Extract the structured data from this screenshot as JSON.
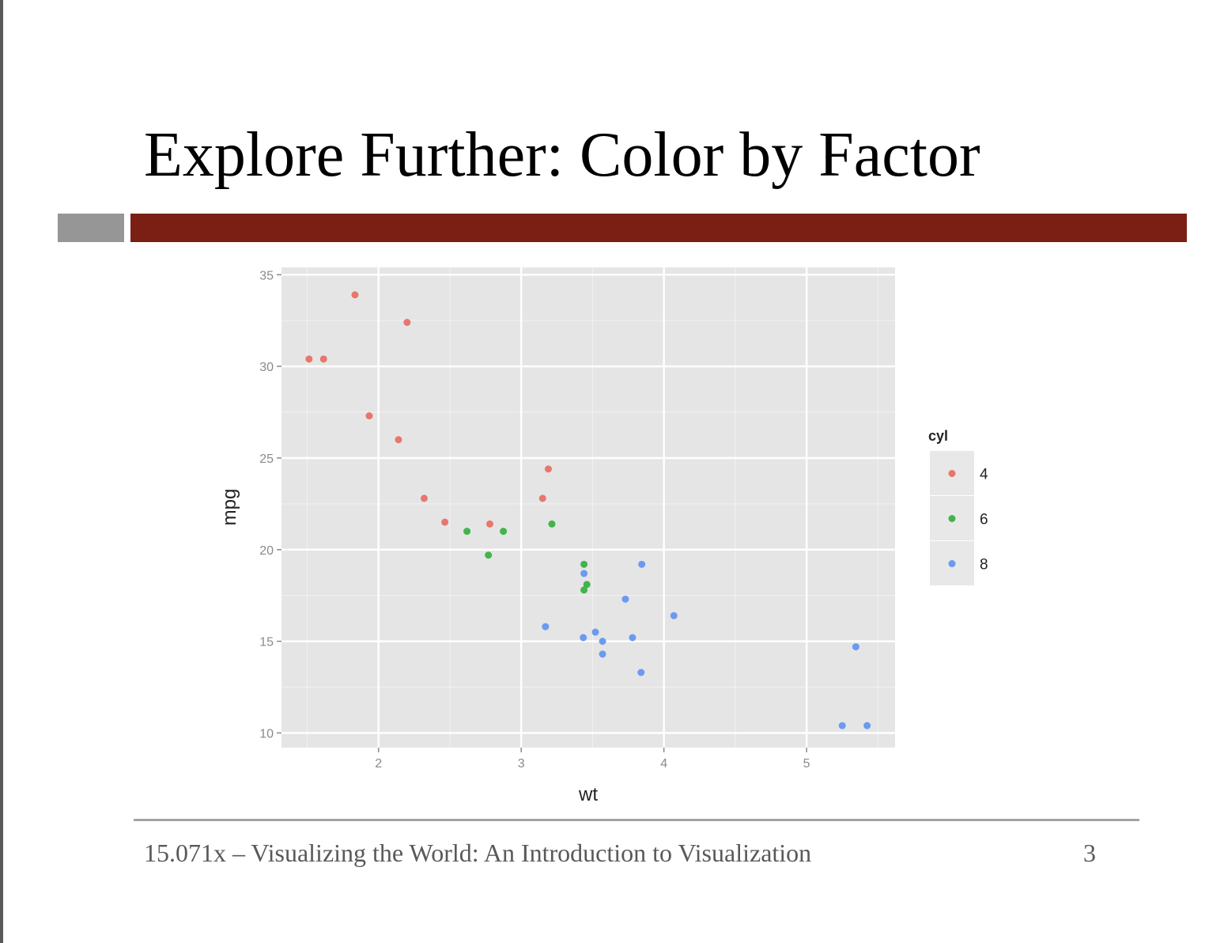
{
  "slide": {
    "title": "Explore Further: Color by Factor",
    "footer": "15.071x – Visualizing the World: An Introduction to Visualization",
    "page_number": "3"
  },
  "colors": {
    "accent_bar": "#7b1f14",
    "side_bar": "#969696",
    "panel_bg": "#e5e5e5",
    "grid": "#ffffff"
  },
  "chart_data": {
    "type": "scatter",
    "title": "",
    "xlabel": "wt",
    "ylabel": "mpg",
    "xlim": [
      1.32,
      5.62
    ],
    "ylim": [
      9.2,
      35.4
    ],
    "x_ticks": [
      2,
      3,
      4,
      5
    ],
    "y_ticks": [
      10,
      15,
      20,
      25,
      30,
      35
    ],
    "grid": true,
    "legend": {
      "title": "cyl",
      "position": "right"
    },
    "series": [
      {
        "name": "4",
        "color": "#e8766d",
        "points": [
          [
            1.513,
            30.4
          ],
          [
            1.615,
            30.4
          ],
          [
            1.835,
            33.9
          ],
          [
            1.935,
            27.3
          ],
          [
            2.14,
            26.0
          ],
          [
            2.2,
            32.4
          ],
          [
            2.32,
            22.8
          ],
          [
            2.465,
            21.5
          ],
          [
            2.78,
            21.4
          ],
          [
            3.15,
            22.8
          ],
          [
            3.19,
            24.4
          ]
        ]
      },
      {
        "name": "6",
        "color": "#41b44b",
        "points": [
          [
            2.62,
            21.0
          ],
          [
            2.77,
            19.7
          ],
          [
            2.875,
            21.0
          ],
          [
            3.215,
            21.4
          ],
          [
            3.44,
            19.2
          ],
          [
            3.44,
            17.8
          ],
          [
            3.46,
            18.1
          ]
        ]
      },
      {
        "name": "8",
        "color": "#6c9af0",
        "points": [
          [
            3.17,
            15.8
          ],
          [
            3.435,
            15.2
          ],
          [
            3.44,
            18.7
          ],
          [
            3.52,
            15.5
          ],
          [
            3.57,
            14.3
          ],
          [
            3.57,
            15.0
          ],
          [
            3.73,
            17.3
          ],
          [
            3.78,
            15.2
          ],
          [
            3.84,
            13.3
          ],
          [
            3.845,
            19.2
          ],
          [
            4.07,
            16.4
          ],
          [
            5.25,
            10.4
          ],
          [
            5.345,
            14.7
          ],
          [
            5.424,
            10.4
          ]
        ]
      }
    ]
  }
}
